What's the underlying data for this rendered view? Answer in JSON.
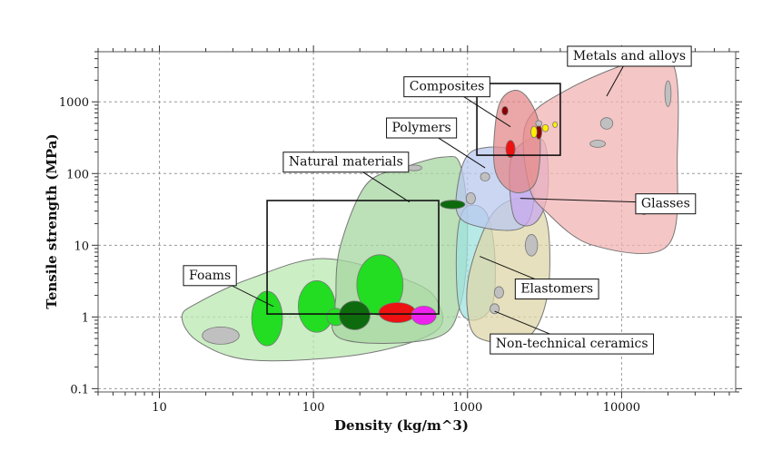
{
  "chart_data": {
    "type": "scatter",
    "title": "",
    "xlabel": "Density (kg/m^3)",
    "ylabel": "Tensile strength (MPa)",
    "x_scale": "log",
    "y_scale": "log",
    "xlim": [
      4,
      55000
    ],
    "ylim": [
      0.09,
      5000
    ],
    "grid": true,
    "x_ticks": [
      {
        "value": 10,
        "label": "10"
      },
      {
        "value": 100,
        "label": "100"
      },
      {
        "value": 1000,
        "label": "1000"
      },
      {
        "value": 10000,
        "label": "10000"
      }
    ],
    "y_ticks": [
      {
        "value": 0.1,
        "label": "0.1"
      },
      {
        "value": 1,
        "label": "1"
      },
      {
        "value": 10,
        "label": "10"
      },
      {
        "value": 100,
        "label": "100"
      },
      {
        "value": 1000,
        "label": "1000"
      }
    ],
    "families": [
      {
        "label": "Foams",
        "color": "#b9e8b0",
        "outline": [
          [
            14,
            1.0
          ],
          [
            18,
            0.45
          ],
          [
            40,
            0.25
          ],
          [
            200,
            0.3
          ],
          [
            600,
            0.6
          ],
          [
            660,
            1.4
          ],
          [
            450,
            3
          ],
          [
            120,
            6.5
          ],
          [
            40,
            3.5
          ],
          [
            18,
            1.6
          ]
        ]
      },
      {
        "label": "Natural materials",
        "color": "#a6d6a0",
        "outline": [
          [
            150,
            0.5
          ],
          [
            600,
            0.5
          ],
          [
            900,
            1.5
          ],
          [
            1000,
            18
          ],
          [
            900,
            130
          ],
          [
            700,
            170
          ],
          [
            380,
            120
          ],
          [
            220,
            70
          ],
          [
            150,
            10
          ],
          [
            140,
            2
          ]
        ]
      },
      {
        "label": "Elastomers",
        "color": "#9fe3df",
        "outline": [
          [
            880,
            1.4
          ],
          [
            1100,
            0.9
          ],
          [
            1450,
            1.5
          ],
          [
            1500,
            8
          ],
          [
            1300,
            30
          ],
          [
            950,
            32
          ],
          [
            850,
            10
          ]
        ]
      },
      {
        "label": "Non-technical ceramics",
        "color": "#ddd6a8",
        "outline": [
          [
            1000,
            1.2
          ],
          [
            1200,
            0.5
          ],
          [
            2400,
            0.5
          ],
          [
            3300,
            2
          ],
          [
            3300,
            20
          ],
          [
            2500,
            45
          ],
          [
            1500,
            30
          ],
          [
            1050,
            5
          ]
        ]
      },
      {
        "label": "Polymers",
        "color": "#b9c8ef",
        "outline": [
          [
            850,
            30
          ],
          [
            1200,
            18
          ],
          [
            2300,
            18
          ],
          [
            2700,
            60
          ],
          [
            2200,
            190
          ],
          [
            1300,
            230
          ],
          [
            950,
            150
          ]
        ]
      },
      {
        "label": "Glasses",
        "color": "#c7a8ef",
        "outline": [
          [
            2000,
            25
          ],
          [
            2700,
            20
          ],
          [
            3300,
            50
          ],
          [
            3200,
            250
          ],
          [
            2500,
            300
          ],
          [
            1900,
            150
          ]
        ]
      },
      {
        "label": "Metals and alloys",
        "color": "#f2b3b3",
        "outline": [
          [
            2500,
            70
          ],
          [
            3200,
            30
          ],
          [
            6500,
            10
          ],
          [
            20000,
            10
          ],
          [
            23000,
            200
          ],
          [
            22000,
            3000
          ],
          [
            14000,
            4000
          ],
          [
            4500,
            1500
          ],
          [
            2400,
            500
          ]
        ]
      },
      {
        "label": "Composites",
        "color": "#e48a8a",
        "outline": [
          [
            1500,
            120
          ],
          [
            2000,
            55
          ],
          [
            2800,
            80
          ],
          [
            2900,
            500
          ],
          [
            2200,
            1400
          ],
          [
            1600,
            900
          ]
        ]
      }
    ],
    "materials": [
      {
        "x": 25,
        "y": 0.55,
        "rx": 0.12,
        "ry": 0.12,
        "color": "#c0c0c0"
      },
      {
        "x": 50,
        "y": 0.95,
        "rx": 0.1,
        "ry": 0.38,
        "color": "#22dd22"
      },
      {
        "x": 105,
        "y": 1.4,
        "rx": 0.12,
        "ry": 0.36,
        "color": "#22dd22"
      },
      {
        "x": 140,
        "y": 1.0,
        "rx": 0.06,
        "ry": 0.12,
        "color": "#22dd22"
      },
      {
        "x": 270,
        "y": 2.8,
        "rx": 0.15,
        "ry": 0.42,
        "color": "#22dd22"
      },
      {
        "x": 185,
        "y": 1.05,
        "rx": 0.1,
        "ry": 0.2,
        "color": "#0d6b0d"
      },
      {
        "x": 350,
        "y": 1.15,
        "rx": 0.12,
        "ry": 0.14,
        "color": "#ee1111"
      },
      {
        "x": 520,
        "y": 1.05,
        "rx": 0.08,
        "ry": 0.13,
        "color": "#ee22ee"
      },
      {
        "x": 800,
        "y": 37,
        "rx": 0.08,
        "ry": 0.06,
        "color": "#0d6b0d"
      },
      {
        "x": 450,
        "y": 120,
        "rx": 0.05,
        "ry": 0.04,
        "color": "#c0c0c0"
      },
      {
        "x": 1900,
        "y": 220,
        "rx": 0.03,
        "ry": 0.12,
        "color": "#ee1111"
      },
      {
        "x": 1750,
        "y": 750,
        "rx": 0.02,
        "ry": 0.06,
        "color": "#8b0000"
      },
      {
        "x": 2900,
        "y": 380,
        "rx": 0.02,
        "ry": 0.1,
        "color": "#8b0000"
      },
      {
        "x": 2700,
        "y": 380,
        "rx": 0.02,
        "ry": 0.08,
        "color": "#ffee00"
      },
      {
        "x": 3200,
        "y": 430,
        "rx": 0.02,
        "ry": 0.05,
        "color": "#ffee00"
      },
      {
        "x": 3700,
        "y": 480,
        "rx": 0.015,
        "ry": 0.04,
        "color": "#ffee00"
      },
      {
        "x": 2900,
        "y": 500,
        "rx": 0.02,
        "ry": 0.04,
        "color": "#c0c0c0"
      },
      {
        "x": 7000,
        "y": 260,
        "rx": 0.05,
        "ry": 0.05,
        "color": "#c0c0c0"
      },
      {
        "x": 8000,
        "y": 500,
        "rx": 0.04,
        "ry": 0.08,
        "color": "#c0c0c0"
      },
      {
        "x": 20000,
        "y": 1300,
        "rx": 0.02,
        "ry": 0.18,
        "color": "#c0c0c0"
      },
      {
        "x": 14000,
        "y": 30,
        "rx": 0.02,
        "ry": 0.05,
        "color": "#c0c0c0"
      },
      {
        "x": 1300,
        "y": 90,
        "rx": 0.03,
        "ry": 0.06,
        "color": "#c0c0c0"
      },
      {
        "x": 1050,
        "y": 45,
        "rx": 0.03,
        "ry": 0.08,
        "color": "#c0c0c0"
      },
      {
        "x": 1600,
        "y": 2.2,
        "rx": 0.03,
        "ry": 0.08,
        "color": "#c0c0c0"
      },
      {
        "x": 1500,
        "y": 1.3,
        "rx": 0.03,
        "ry": 0.07,
        "color": "#c0c0c0"
      },
      {
        "x": 2600,
        "y": 10,
        "rx": 0.04,
        "ry": 0.15,
        "color": "#c0c0c0"
      }
    ],
    "boxes": [
      {
        "x0": 50,
        "x1": 650,
        "y0": 1.1,
        "y1": 42
      },
      {
        "x0": 1150,
        "x1": 4000,
        "y0": 180,
        "y1": 1800
      }
    ],
    "annotations": [
      {
        "text": "Composites",
        "anchor_x": 1900,
        "anchor_y": 450,
        "label_side": "upper-left"
      },
      {
        "text": "Metals and alloys",
        "anchor_x": 8000,
        "anchor_y": 1200,
        "label_side": "upper-right"
      },
      {
        "text": "Polymers",
        "anchor_x": 1300,
        "anchor_y": 120,
        "label_side": "upper-left"
      },
      {
        "text": "Natural materials",
        "anchor_x": 420,
        "anchor_y": 40,
        "label_side": "upper-left"
      },
      {
        "text": "Glasses",
        "anchor_x": 2200,
        "anchor_y": 45,
        "label_side": "right"
      },
      {
        "text": "Foams",
        "anchor_x": 55,
        "anchor_y": 1.4,
        "label_side": "left"
      },
      {
        "text": "Elastomers",
        "anchor_x": 1200,
        "anchor_y": 7,
        "label_side": "lower-right"
      },
      {
        "text": "Non-technical ceramics",
        "anchor_x": 1500,
        "anchor_y": 1.2,
        "label_side": "lower-right"
      }
    ]
  }
}
